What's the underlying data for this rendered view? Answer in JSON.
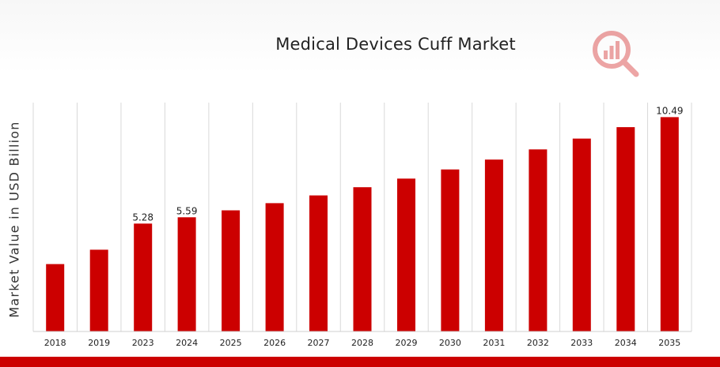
{
  "chart_data": {
    "type": "bar",
    "title": "Medical Devices Cuff Market",
    "xlabel": "",
    "ylabel": "Market Value in USD Billion",
    "categories": [
      "2018",
      "2019",
      "2023",
      "2024",
      "2025",
      "2026",
      "2027",
      "2028",
      "2029",
      "2030",
      "2031",
      "2032",
      "2033",
      "2034",
      "2035"
    ],
    "values": [
      3.3,
      4.0,
      5.28,
      5.59,
      5.93,
      6.28,
      6.66,
      7.06,
      7.48,
      7.93,
      8.41,
      8.91,
      9.44,
      10.0,
      10.49
    ],
    "data_labels": {
      "2023": "5.28",
      "2024": "5.59",
      "2035": "10.49"
    },
    "ylim": [
      0,
      11.2
    ],
    "grid": "vertical",
    "colors": {
      "bar": "#cc0000",
      "grid": "#d9d9d9",
      "accent": "#cc0000"
    }
  },
  "logo": {
    "icon": "bar-chart-magnifier-icon"
  }
}
